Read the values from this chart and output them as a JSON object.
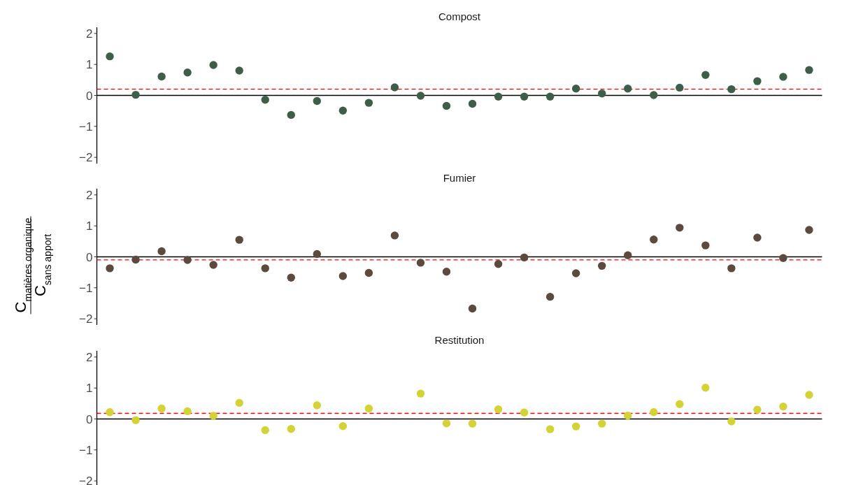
{
  "chart_data": [
    {
      "type": "scatter",
      "title": "Compost",
      "categories": [
        null,
        null,
        null,
        null,
        null,
        null,
        null,
        null,
        null,
        null,
        null,
        null,
        null,
        null,
        null,
        null,
        null,
        null,
        null,
        null,
        null,
        null,
        null,
        null,
        null,
        null,
        null,
        null
      ],
      "series": [
        {
          "color": "#3f5e4a",
          "values": [
            1.26,
            0.02,
            0.61,
            0.74,
            0.98,
            0.8,
            -0.14,
            -0.63,
            -0.18,
            -0.49,
            -0.24,
            0.26,
            -0.01,
            -0.34,
            -0.27,
            -0.04,
            -0.04,
            -0.04,
            0.22,
            0.06,
            0.22,
            0.01,
            0.25,
            0.66,
            0.2,
            0.46,
            0.6,
            0.82
          ]
        }
      ],
      "ylim": [
        -2.2,
        2.2
      ],
      "yticks": [
        -2,
        -1,
        0,
        1,
        2
      ],
      "tick_labels": "y",
      "marker": "circle",
      "ref_lines": [
        {
          "axis": "y",
          "value": 0,
          "color": "#000000",
          "line_style": "solid"
        },
        {
          "axis": "y",
          "value": 0.2,
          "color": "#ff0000",
          "line_style": "dashed"
        }
      ]
    },
    {
      "type": "scatter",
      "title": "Fumier",
      "ylabel": "C$_{matières organique}$ C$_{sans apport}$",
      "categories": [
        null,
        null,
        null,
        null,
        null,
        null,
        null,
        null,
        null,
        null,
        null,
        null,
        null,
        null,
        null,
        null,
        null,
        null,
        null,
        null,
        null,
        null,
        null,
        null,
        null,
        null,
        null,
        null
      ],
      "series": [
        {
          "color": "#5c4a3e",
          "values": [
            -0.37,
            -0.09,
            0.18,
            -0.1,
            -0.26,
            0.55,
            -0.37,
            -0.67,
            0.09,
            -0.62,
            -0.52,
            0.69,
            -0.19,
            -0.48,
            -1.67,
            -0.23,
            -0.02,
            -1.29,
            -0.53,
            -0.29,
            0.05,
            0.56,
            0.94,
            0.37,
            -0.37,
            0.62,
            -0.04,
            0.87
          ]
        }
      ],
      "ylim": [
        -2.2,
        2.2
      ],
      "yticks": [
        -2,
        -1,
        0,
        1,
        2
      ],
      "tick_labels": "y",
      "marker": "circle",
      "ref_lines": [
        {
          "axis": "y",
          "value": 0,
          "color": "#000000",
          "line_style": "solid"
        },
        {
          "axis": "y",
          "value": -0.1,
          "color": "#ff0000",
          "line_style": "dashed"
        }
      ]
    },
    {
      "type": "scatter",
      "title": "Restitution",
      "categories": [
        null,
        null,
        null,
        null,
        null,
        null,
        null,
        null,
        null,
        null,
        null,
        null,
        null,
        null,
        null,
        null,
        null,
        null,
        null,
        null,
        null,
        null,
        null,
        null,
        null,
        null,
        null,
        null
      ],
      "series": [
        {
          "color": "#d3d335",
          "values": [
            0.22,
            -0.04,
            0.34,
            0.25,
            0.1,
            0.52,
            -0.36,
            -0.32,
            0.44,
            -0.23,
            0.34,
            null,
            0.82,
            -0.14,
            -0.15,
            0.31,
            0.21,
            -0.33,
            -0.24,
            -0.15,
            0.11,
            0.22,
            0.48,
            1.01,
            -0.08,
            0.3,
            0.4,
            0.78
          ]
        }
      ],
      "ylim": [
        -2.2,
        2.2
      ],
      "yticks": [
        -2,
        -1,
        0,
        1,
        2
      ],
      "tick_labels": "y",
      "marker": "circle",
      "ref_lines": [
        {
          "axis": "y",
          "value": 0,
          "color": "#000000",
          "line_style": "solid"
        },
        {
          "axis": "y",
          "value": 0.18,
          "color": "#ff0000",
          "line_style": "dashed"
        }
      ]
    }
  ]
}
